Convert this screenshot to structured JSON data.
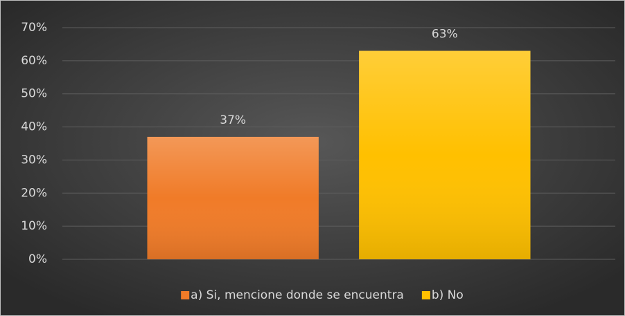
{
  "chart_data": {
    "type": "bar",
    "categories": [
      null
    ],
    "series": [
      {
        "name": "a) Si, mencione donde se encuentra",
        "color": "#f07b28",
        "values": [
          37
        ],
        "value_labels": [
          "37%"
        ]
      },
      {
        "name": "b) No",
        "color": "#ffc000",
        "values": [
          63
        ],
        "value_labels": [
          "63%"
        ]
      }
    ],
    "ylim": [
      0,
      70
    ],
    "yticks": [
      {
        "value": 0,
        "label": "0%"
      },
      {
        "value": 10,
        "label": "10%"
      },
      {
        "value": 20,
        "label": "20%"
      },
      {
        "value": 30,
        "label": "30%"
      },
      {
        "value": 40,
        "label": "40%"
      },
      {
        "value": 50,
        "label": "50%"
      },
      {
        "value": 60,
        "label": "60%"
      },
      {
        "value": 70,
        "label": "70%"
      }
    ],
    "grid": true,
    "legend": "bottom"
  }
}
